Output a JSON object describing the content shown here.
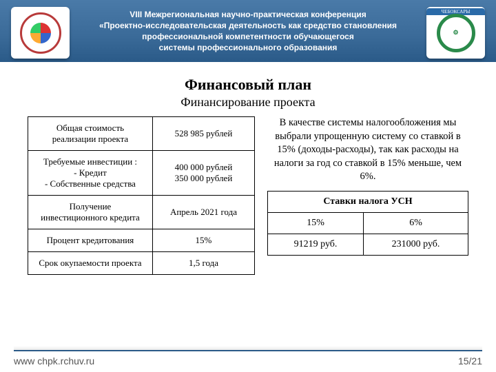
{
  "header": {
    "line1": "VIII Межрегиональная научно-практическая конференция",
    "line2": "«Проектно-исследовательская деятельность как средство становления",
    "line3": "профессиональной компетентности обучающегося",
    "line4": "системы профессионального образования",
    "right_badge": "ЧЕБОКСАРЫ",
    "band_color": "#3a6a98"
  },
  "title": "Финансовый план",
  "subtitle": "Финансирование проекта",
  "finance_table": {
    "rows": [
      {
        "label": "Общая стоимость реализации проекта",
        "value": "528 985 рублей"
      },
      {
        "label": "Требуемые инвестиции :\n- Кредит\n- Собственные средства",
        "value": "400 000 рублей\n350 000 рублей"
      },
      {
        "label": "Получение инвестиционного кредита",
        "value": "Апрель 2021 года"
      },
      {
        "label": "Процент кредитования",
        "value": "15%"
      },
      {
        "label": "Срок окупаемости проекта",
        "value": "1,5 года"
      }
    ]
  },
  "paragraph": "В качестве системы налогообложения мы выбрали упрощенную систему со ставкой в 15% (доходы-расходы), так как расходы на налоги за год со ставкой в 15% меньше, чем 6%.",
  "tax_table": {
    "header": "Ставки налога УСН",
    "columns": [
      "15%",
      "6%"
    ],
    "values": [
      "91219 руб.",
      "231000 руб."
    ]
  },
  "footer": {
    "url": "www chpk.rchuv.ru",
    "page": "15/21"
  }
}
